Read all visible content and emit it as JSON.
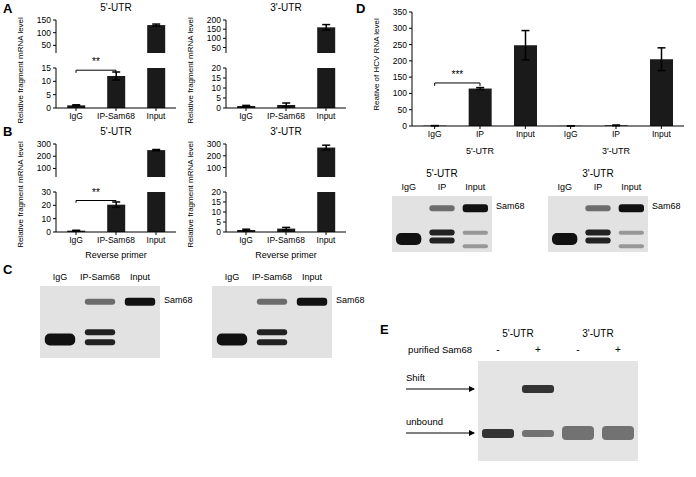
{
  "panel_labels": [
    "A",
    "B",
    "C",
    "D",
    "E"
  ],
  "chart_data": [
    {
      "type": "bar",
      "title": "5'-UTR",
      "y_label": "Relative fragment mRNA level",
      "categories": [
        "IgG",
        "IP-Sam68",
        "Input"
      ],
      "values": [
        1,
        12,
        130
      ],
      "errors": [
        0.2,
        1.5,
        4
      ],
      "color": "#1a1a1a",
      "segments": [
        {
          "ylim": [
            20,
            150
          ],
          "yticks": [
            50,
            100,
            150
          ]
        },
        {
          "ylim": [
            0,
            15
          ],
          "yticks": [
            0,
            5,
            10,
            15
          ]
        }
      ],
      "significance": {
        "from": 0,
        "to": 1,
        "label": "**"
      }
    },
    {
      "type": "bar",
      "title": "3'-UTR",
      "y_label": "Relative fragment mRNA level",
      "categories": [
        "IgG",
        "IP-Sam68",
        "Input"
      ],
      "values": [
        1,
        1.5,
        160
      ],
      "errors": [
        0.3,
        1,
        15
      ],
      "color": "#1a1a1a",
      "segments": [
        {
          "ylim": [
            20,
            200
          ],
          "yticks": [
            50,
            100,
            150,
            200
          ]
        },
        {
          "ylim": [
            0,
            20
          ],
          "yticks": [
            0,
            5,
            10,
            15,
            20
          ]
        }
      ]
    },
    {
      "type": "bar",
      "title": "5'-UTR",
      "y_label": "Relative fragment mRNA level",
      "x_label": "Reverse primer",
      "categories": [
        "IgG",
        "IP-Sam68",
        "Input"
      ],
      "values": [
        1,
        20.5,
        250
      ],
      "errors": [
        0.3,
        2,
        5
      ],
      "color": "#1a1a1a",
      "segments": [
        {
          "ylim": [
            30,
            300
          ],
          "yticks": [
            100,
            200,
            300
          ]
        },
        {
          "ylim": [
            0,
            30
          ],
          "yticks": [
            0,
            10,
            20,
            30
          ]
        }
      ],
      "significance": {
        "from": 0,
        "to": 1,
        "label": "**"
      }
    },
    {
      "type": "bar",
      "title": "3'-UTR",
      "y_label": "Relative fragment mRNA level",
      "x_label": "Reverse primer",
      "categories": [
        "IgG",
        "IP-Sam68",
        "Input"
      ],
      "values": [
        1,
        1.7,
        270
      ],
      "errors": [
        0.4,
        0.6,
        20
      ],
      "color": "#1a1a1a",
      "segments": [
        {
          "ylim": [
            20,
            300
          ],
          "yticks": [
            100,
            200,
            300
          ]
        },
        {
          "ylim": [
            0,
            20
          ],
          "yticks": [
            0,
            5,
            10,
            15,
            20
          ]
        }
      ]
    },
    {
      "type": "bar",
      "y_label": "Reative of HCV RNA level",
      "categories": [
        "IgG",
        "IP",
        "Input",
        "IgG",
        "IP",
        "Input"
      ],
      "groups": [
        "5'-UTR",
        "3'-UTR"
      ],
      "values": [
        1,
        115,
        248,
        0.5,
        2,
        205
      ],
      "errors": [
        0.3,
        3,
        45,
        0.2,
        1,
        35
      ],
      "color": "#1a1a1a",
      "ylim": [
        0,
        350
      ],
      "yticks": [
        0,
        50,
        100,
        150,
        200,
        250,
        300,
        350
      ],
      "significance": {
        "from": 0,
        "to": 1,
        "label": "***"
      }
    }
  ],
  "blots": [
    {
      "lanes": [
        "IgG",
        "IP-Sam68",
        "Input"
      ],
      "band_label": "Sam68"
    },
    {
      "lanes": [
        "IgG",
        "IP-Sam68",
        "Input"
      ],
      "band_label": "Sam68"
    },
    {
      "title": "5'-UTR",
      "lanes": [
        "IgG",
        "IP",
        "Input"
      ],
      "band_label": "Sam68"
    },
    {
      "title": "3'-UTR",
      "lanes": [
        "IgG",
        "IP",
        "Input"
      ],
      "band_label": "Sam68"
    }
  ],
  "emsa": {
    "groups": [
      "5'-UTR",
      "3'-UTR"
    ],
    "row_label": "purified Sam68",
    "lane_signs": [
      "-",
      "+",
      "-",
      "+"
    ],
    "band_labels": [
      "Shift",
      "unbound"
    ]
  }
}
